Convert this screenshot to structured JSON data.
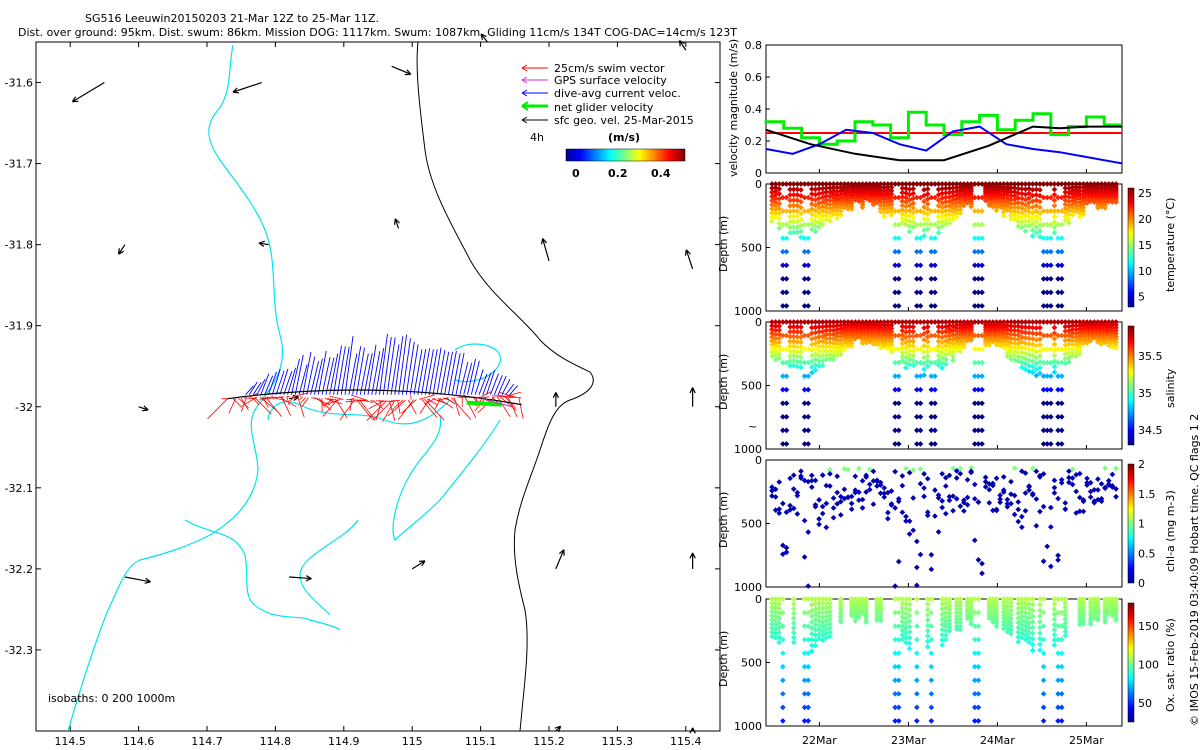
{
  "header": {
    "line1": "SG516 Leeuwin20150203 21-Mar 12Z to 25-Mar 11Z.",
    "line2": "Dist. over ground: 95km. Dist. swum: 86km. Mission DOG: 1117km. Swum: 1087km. Gliding 11cm/s 134T COG-DAC=14cm/s 123T"
  },
  "credit": "© IMOS 15-Feb-2019 03:40:09 Hobart time. QC flags 1  2",
  "colors": {
    "swim": "#ff0000",
    "gps": "#cc33cc",
    "dac": "#0000ff",
    "net": "#00ee00",
    "geo": "#000000",
    "isobath_200": "#00e5ee",
    "isobath_1000": "#000000",
    "mean_line": "#ff0000"
  },
  "chart_data": [
    {
      "type": "map",
      "name": "track-map",
      "xlim": [
        114.45,
        115.45
      ],
      "ylim": [
        -32.4,
        -31.55
      ],
      "xticks": [
        "114.5",
        "114.6",
        "114.7",
        "114.8",
        "114.9",
        "115",
        "115.1",
        "115.2",
        "115.3",
        "115.4"
      ],
      "yticks": [
        "-31.6",
        "-31.7",
        "-31.8",
        "-31.9",
        "-32",
        "-32.1",
        "-32.2",
        "-32.3"
      ],
      "legend": {
        "items": [
          "25cm/s swim vector",
          "GPS surface velocity",
          "dive-avg current veloc.",
          "net glider velocity",
          "sfc geo. vel. 25-Mar-2015"
        ],
        "scale_label": "4h",
        "colorbar_title": "(m/s)",
        "colorbar_ticks": [
          "0",
          "0.2",
          "0.4"
        ]
      },
      "isobaths_label": "isobaths: 0   200   1000m",
      "track": {
        "lon_start": 114.73,
        "lon_end": 115.16,
        "lat": -31.99
      },
      "geo_vectors": [
        {
          "lon": 114.55,
          "lat": -31.6,
          "u": -0.2,
          "v": -0.12
        },
        {
          "lon": 114.78,
          "lat": -31.6,
          "u": -0.18,
          "v": -0.06
        },
        {
          "lon": 114.97,
          "lat": -31.58,
          "u": 0.12,
          "v": -0.05
        },
        {
          "lon": 115.11,
          "lat": -31.55,
          "u": -0.04,
          "v": 0.05
        },
        {
          "lon": 115.4,
          "lat": -31.56,
          "u": -0.04,
          "v": 0.06
        },
        {
          "lon": 114.58,
          "lat": -31.8,
          "u": -0.04,
          "v": -0.06
        },
        {
          "lon": 114.79,
          "lat": -31.8,
          "u": -0.06,
          "v": 0.01
        },
        {
          "lon": 114.98,
          "lat": -31.78,
          "u": -0.02,
          "v": 0.06
        },
        {
          "lon": 115.2,
          "lat": -31.82,
          "u": -0.04,
          "v": 0.14
        },
        {
          "lon": 115.41,
          "lat": -31.83,
          "u": -0.04,
          "v": 0.12
        },
        {
          "lon": 114.6,
          "lat": -32.0,
          "u": 0.06,
          "v": -0.02
        },
        {
          "lon": 114.82,
          "lat": -31.99,
          "u": 0.06,
          "v": 0.01
        },
        {
          "lon": 115.21,
          "lat": -32.0,
          "u": 0.0,
          "v": 0.09
        },
        {
          "lon": 115.41,
          "lat": -32.0,
          "u": 0.0,
          "v": 0.12
        },
        {
          "lon": 114.58,
          "lat": -32.21,
          "u": 0.16,
          "v": -0.03
        },
        {
          "lon": 114.82,
          "lat": -32.21,
          "u": 0.14,
          "v": -0.01
        },
        {
          "lon": 115.0,
          "lat": -32.2,
          "u": 0.08,
          "v": 0.05
        },
        {
          "lon": 115.21,
          "lat": -32.2,
          "u": 0.05,
          "v": 0.12
        },
        {
          "lon": 115.41,
          "lat": -32.2,
          "u": 0.0,
          "v": 0.1
        },
        {
          "lon": 115.21,
          "lat": -32.4,
          "u": 0.03,
          "v": 0.03
        },
        {
          "lon": 115.41,
          "lat": -32.4,
          "u": 0.0,
          "v": 0.02
        }
      ]
    },
    {
      "type": "line",
      "name": "velocity-panel",
      "ylabel": "velocity magnitude (m/s)",
      "ylim": [
        0,
        0.8
      ],
      "yticks": [
        "0",
        "0.2",
        "0.4",
        "0.6",
        "0.8"
      ],
      "xlim": [
        0,
        4
      ],
      "mean": 0.25,
      "series": [
        {
          "name": "net glider velocity",
          "color": "#00ee00",
          "x": [
            0,
            0.2,
            0.4,
            0.6,
            0.8,
            1.0,
            1.2,
            1.4,
            1.6,
            1.8,
            2.0,
            2.2,
            2.4,
            2.6,
            2.8,
            3.0,
            3.2,
            3.4,
            3.6,
            3.8,
            4.0
          ],
          "y": [
            0.33,
            0.32,
            0.28,
            0.22,
            0.18,
            0.2,
            0.32,
            0.3,
            0.22,
            0.38,
            0.3,
            0.24,
            0.32,
            0.36,
            0.27,
            0.33,
            0.37,
            0.24,
            0.29,
            0.35,
            0.3
          ]
        },
        {
          "name": "dive-avg current veloc.",
          "color": "#0000ff",
          "x": [
            0,
            0.3,
            0.6,
            0.9,
            1.2,
            1.5,
            1.8,
            2.1,
            2.4,
            2.7,
            3.0,
            3.3,
            3.6,
            3.9,
            4.0
          ],
          "y": [
            0.15,
            0.12,
            0.18,
            0.27,
            0.25,
            0.18,
            0.14,
            0.26,
            0.29,
            0.18,
            0.15,
            0.13,
            0.1,
            0.07,
            0.06
          ]
        },
        {
          "name": "sfc geo. vel.",
          "color": "#000000",
          "x": [
            0,
            0.5,
            1.0,
            1.5,
            2.0,
            2.5,
            3.0,
            3.3,
            3.6,
            4.0
          ],
          "y": [
            0.27,
            0.18,
            0.12,
            0.08,
            0.08,
            0.17,
            0.29,
            0.28,
            0.29,
            0.29
          ]
        }
      ]
    },
    {
      "type": "scatter",
      "name": "temperature-section",
      "ylabel": "Depth (m)",
      "ylim": [
        0,
        1000
      ],
      "yticks": [
        "0",
        "500",
        "1000"
      ],
      "colorbar_label": "temperature (°C)",
      "colorbar_ticks": [
        "5",
        "10",
        "15",
        "20",
        "25"
      ],
      "crange": [
        3,
        26
      ],
      "dives": 96
    },
    {
      "type": "scatter",
      "name": "salinity-section",
      "ylabel": "Depth (m)",
      "ylim": [
        0,
        1000
      ],
      "yticks": [
        "0",
        "500",
        "1000"
      ],
      "colorbar_label": "salinity",
      "colorbar_ticks": [
        "34.5",
        "35",
        "35.5"
      ],
      "crange": [
        34.3,
        35.9
      ],
      "dives": 96
    },
    {
      "type": "scatter",
      "name": "chla-section",
      "ylabel": "Depth (m)",
      "ylim": [
        0,
        1000
      ],
      "yticks": [
        "0",
        "500",
        "1000"
      ],
      "colorbar_label": "chl-a (mg m-3)",
      "colorbar_ticks": [
        "0",
        "0.5",
        "1",
        "1.5",
        "2"
      ],
      "crange": [
        0,
        2
      ],
      "dives": 96
    },
    {
      "type": "scatter",
      "name": "oxygen-section",
      "ylabel": "Depth (m)",
      "ylim": [
        0,
        1000
      ],
      "yticks": [
        "0",
        "500",
        "1000"
      ],
      "colorbar_label": "Ox. sat. ratio (%)",
      "colorbar_ticks": [
        "50",
        "100",
        "150"
      ],
      "crange": [
        25,
        180
      ],
      "dives": 96
    }
  ],
  "time_axis": {
    "ticks": [
      "22Mar",
      "23Mar",
      "24Mar",
      "25Mar"
    ]
  },
  "stray_glyph": "~"
}
